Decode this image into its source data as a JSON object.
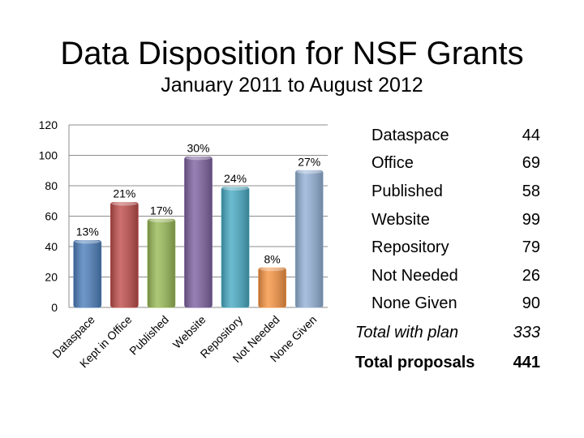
{
  "title": "Data Disposition for NSF Grants",
  "subtitle": "January 2011 to August 2012",
  "chart_data": {
    "type": "bar",
    "categories": [
      "Dataspace",
      "Kept in Office",
      "Published",
      "Website",
      "Repository",
      "Not Needed",
      "None Given"
    ],
    "values": [
      44,
      69,
      58,
      99,
      79,
      26,
      90
    ],
    "data_labels": [
      "13%",
      "21%",
      "17%",
      "30%",
      "24%",
      "8%",
      "27%"
    ],
    "colors": [
      "#4f81bd",
      "#c0504d",
      "#9bbb59",
      "#8064a2",
      "#4bacc6",
      "#f79646",
      "#95b3d7"
    ],
    "ylim": [
      0,
      120
    ],
    "yticks": [
      "0",
      "20",
      "40",
      "60",
      "80",
      "100",
      "120"
    ],
    "grid": true,
    "legend": "none"
  },
  "table": {
    "rows": [
      {
        "label": "Dataspace",
        "value": "44"
      },
      {
        "label": "Office",
        "value": "69"
      },
      {
        "label": "Published",
        "value": "58"
      },
      {
        "label": "Website",
        "value": "99"
      },
      {
        "label": "Repository",
        "value": "79"
      },
      {
        "label": "Not Needed",
        "value": "26"
      },
      {
        "label": "None Given",
        "value": "90"
      }
    ],
    "total_with_plan": {
      "label": "Total with plan",
      "value": "333"
    },
    "total_proposals": {
      "label": "Total proposals",
      "value": "441"
    }
  }
}
